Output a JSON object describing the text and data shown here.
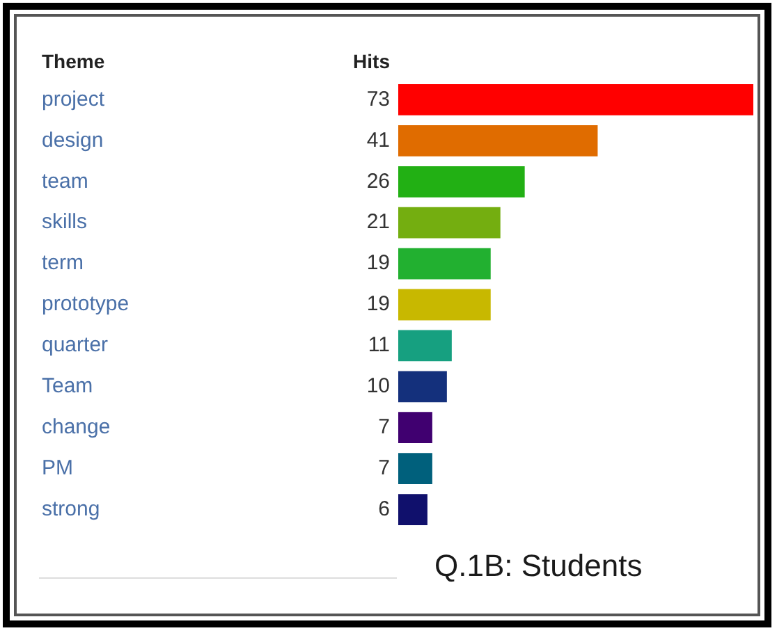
{
  "chart_data": {
    "type": "bar",
    "orientation": "horizontal",
    "ylabel": "Theme",
    "xlabel": "Hits",
    "data_labels": true,
    "categories": [
      "project",
      "design",
      "team",
      "skills",
      "term",
      "prototype",
      "quarter",
      "Team",
      "change",
      "PM",
      "strong"
    ],
    "values": [
      73,
      41,
      26,
      21,
      19,
      19,
      11,
      10,
      7,
      7,
      6
    ],
    "colors": [
      "#ff0000",
      "#e06c00",
      "#22b014",
      "#74ae10",
      "#22b030",
      "#c8b800",
      "#16a080",
      "#14307c",
      "#400070",
      "#00607c",
      "#10106c"
    ],
    "annotations": [
      "Q.1B: Students"
    ]
  }
}
